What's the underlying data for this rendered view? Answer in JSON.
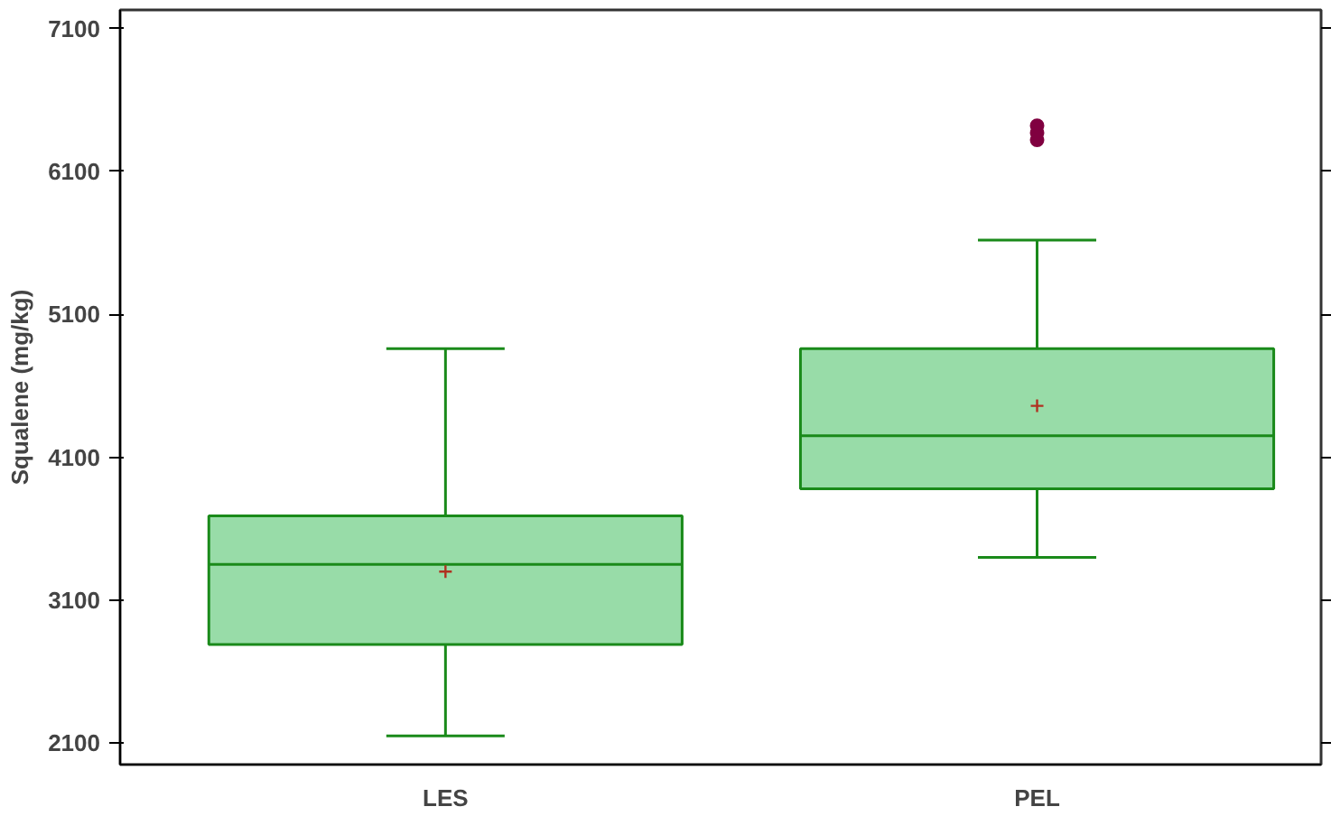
{
  "chart_data": {
    "type": "box",
    "ylabel": "Squalene (mg/kg)",
    "categories": [
      "LES",
      "PEL"
    ],
    "ylim": [
      1950,
      7230
    ],
    "yticks": [
      2100,
      3100,
      4100,
      5100,
      6100,
      7100
    ],
    "grid": false,
    "color": "#98dca8",
    "boxes": [
      {
        "low": 2150,
        "q1": 2790,
        "median": 3350,
        "q3": 3690,
        "high": 4860,
        "mean": 3300
      },
      {
        "low": 3400,
        "q1": 3880,
        "median": 4250,
        "q3": 4860,
        "high": 5620,
        "mean": 4460,
        "outliers": [
          6320,
          6370,
          6420
        ]
      }
    ]
  }
}
